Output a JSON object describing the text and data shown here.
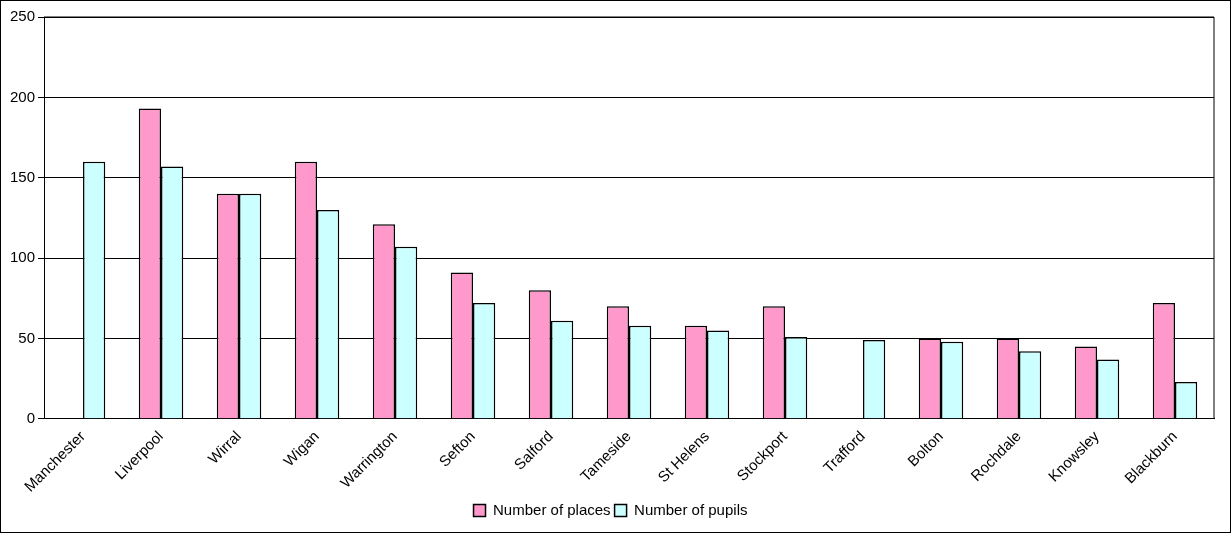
{
  "chart_data": {
    "type": "bar",
    "categories": [
      "Manchester",
      "Liverpool",
      "Wirral",
      "Wigan",
      "Warrington",
      "Sefton",
      "Salford",
      "Tameside",
      "St Helens",
      "Stockport",
      "Trafford",
      "Bolton",
      "Rochdale",
      "Knowsley",
      "Blackburn"
    ],
    "series": [
      {
        "name": "Number of places",
        "color": "#ff99cc",
        "values": [
          null,
          193,
          140,
          160,
          121,
          91,
          80,
          70,
          58,
          70,
          null,
          50,
          50,
          45,
          72
        ]
      },
      {
        "name": "Number of pupils",
        "color": "#ccffff",
        "values": [
          160,
          157,
          140,
          130,
          107,
          72,
          61,
          58,
          55,
          51,
          49,
          48,
          42,
          37,
          23
        ]
      }
    ],
    "ylim": [
      0,
      250
    ],
    "yticks": [
      0,
      50,
      100,
      150,
      200,
      250
    ],
    "grid": "y",
    "legend": "bottom"
  }
}
